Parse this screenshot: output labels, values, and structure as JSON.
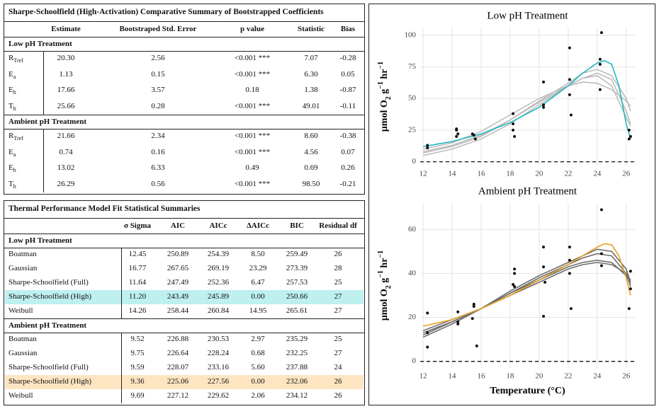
{
  "summary_table": {
    "title": "Sharpe-Schoolfield (High-Activation) Comparative Summary of Bootstrapped Coefficients",
    "headers": [
      "Estimate",
      "Bootstraped Std. Error",
      "p value",
      "Statistic",
      "Bias"
    ],
    "groups": [
      {
        "label": "Low pH Treatment",
        "rows": [
          {
            "param": "R",
            "sub": "Tref",
            "cells": [
              "20.30",
              "2.56",
              "<0.001 ***",
              "7.07",
              "-0.28"
            ]
          },
          {
            "param": "E",
            "sub": "a",
            "cells": [
              "1.13",
              "0.15",
              "<0.001 ***",
              "6.30",
              "0.05"
            ]
          },
          {
            "param": "E",
            "sub": "h",
            "cells": [
              "17.66",
              "3.57",
              "0.18",
              "1.38",
              "-0.87"
            ]
          },
          {
            "param": "T",
            "sub": "h",
            "cells": [
              "25.66",
              "0.28",
              "<0.001 ***",
              "49.01",
              "-0.11"
            ]
          }
        ]
      },
      {
        "label": "Ambient pH Treatment",
        "rows": [
          {
            "param": "R",
            "sub": "Tref",
            "cells": [
              "21.66",
              "2.34",
              "<0.001 ***",
              "8.60",
              "-0.38"
            ]
          },
          {
            "param": "E",
            "sub": "a",
            "cells": [
              "0.74",
              "0.16",
              "<0.001 ***",
              "4.56",
              "0.07"
            ]
          },
          {
            "param": "E",
            "sub": "h",
            "cells": [
              "13.02",
              "6.33",
              "0.49",
              "0.69",
              "0.26"
            ]
          },
          {
            "param": "T",
            "sub": "h",
            "cells": [
              "26.29",
              "0.56",
              "<0.001 ***",
              "98.50",
              "-0.21"
            ]
          }
        ]
      }
    ]
  },
  "fit_table": {
    "title": "Thermal Performance Model Fit Statistical Summaries",
    "headers": [
      "σ Sigma",
      "AIC",
      "AICc",
      "ΔAICc",
      "BIC",
      "Residual df"
    ],
    "groups": [
      {
        "label": "Low pH Treatment",
        "rows": [
          {
            "model": "Boatman",
            "cells": [
              "12.45",
              "250.89",
              "254.39",
              "8.50",
              "259.49",
              "26"
            ]
          },
          {
            "model": "Gaussian",
            "cells": [
              "16.77",
              "267.65",
              "269.19",
              "23.29",
              "273.39",
              "28"
            ]
          },
          {
            "model": "Sharpe-Schoolfield (Full)",
            "cells": [
              "11.64",
              "247.49",
              "252.36",
              "6.47",
              "257.53",
              "25"
            ]
          },
          {
            "model": "Sharpe-Schoolfield (High)",
            "cells": [
              "11.20",
              "243.49",
              "245.89",
              "0.00",
              "250.66",
              "27"
            ],
            "highlight": "#bdf0ef"
          },
          {
            "model": "Weibull",
            "cells": [
              "14.26",
              "258.44",
              "260.84",
              "14.95",
              "265.61",
              "27"
            ]
          }
        ]
      },
      {
        "label": "Ambient pH Treatment",
        "rows": [
          {
            "model": "Boatman",
            "cells": [
              "9.52",
              "226.88",
              "230.53",
              "2.97",
              "235.29",
              "25"
            ]
          },
          {
            "model": "Gaussian",
            "cells": [
              "9.75",
              "226.64",
              "228.24",
              "0.68",
              "232.25",
              "27"
            ]
          },
          {
            "model": "Sharpe-Schoolfield (Full)",
            "cells": [
              "9.59",
              "228.07",
              "233.16",
              "5.60",
              "237.88",
              "24"
            ]
          },
          {
            "model": "Sharpe-Schoolfield (High)",
            "cells": [
              "9.36",
              "225.06",
              "227.56",
              "0.00",
              "232.06",
              "26"
            ],
            "highlight": "#fde5c2"
          },
          {
            "model": "Weibull",
            "cells": [
              "9.69",
              "227.12",
              "229.62",
              "2.06",
              "234.12",
              "26"
            ]
          }
        ]
      }
    ]
  },
  "chart_data": [
    {
      "type": "line",
      "title": "Low pH Treatment",
      "ylabel": [
        {
          "text": "μmol O"
        },
        {
          "text": "2",
          "script": "sub"
        },
        {
          "text": " g"
        },
        {
          "text": "−1",
          "script": "super"
        },
        {
          "text": " hr"
        },
        {
          "text": "−1",
          "script": "super"
        }
      ],
      "xlim": [
        11.8,
        26.6
      ],
      "ylim": [
        -3,
        106
      ],
      "xticks": [
        12,
        14,
        16,
        18,
        20,
        22,
        24,
        26
      ],
      "yticks": [
        0,
        25,
        50,
        75,
        100
      ],
      "grid": true,
      "reference_line": 0,
      "series": [
        {
          "type": "line",
          "color": "#bdbdbd",
          "x": [
            12,
            14,
            16,
            18,
            20,
            22,
            23,
            24,
            25,
            26,
            26.3
          ],
          "values": [
            5,
            10,
            18,
            30,
            45,
            60,
            66,
            70,
            65,
            40,
            30
          ]
        },
        {
          "type": "line",
          "color": "#bdbdbd",
          "x": [
            12,
            14,
            16,
            18,
            20,
            22,
            23,
            24,
            25,
            26,
            26.3
          ],
          "values": [
            8,
            13,
            21,
            33,
            48,
            62,
            70,
            73,
            68,
            50,
            40
          ]
        },
        {
          "type": "line",
          "color": "#bdbdbd",
          "x": [
            12,
            14,
            16,
            18,
            20,
            22,
            23,
            24,
            25,
            26,
            26.3
          ],
          "values": [
            10,
            15,
            24,
            37,
            50,
            60,
            63,
            62,
            57,
            48,
            44
          ]
        },
        {
          "type": "line",
          "color": "#bdbdbd",
          "x": [
            12,
            14,
            16,
            18,
            20,
            22,
            23,
            24,
            25,
            26,
            26.3
          ],
          "values": [
            7,
            12,
            20,
            33,
            47,
            60,
            66,
            68,
            60,
            35,
            28
          ]
        },
        {
          "type": "line",
          "color": "#1fb8c0",
          "x": [
            12,
            14,
            16,
            18,
            20,
            22,
            23,
            24,
            24.5,
            25,
            25.5,
            26,
            26.3
          ],
          "values": [
            12,
            16,
            22,
            31,
            43,
            60,
            70,
            78,
            80,
            77,
            60,
            30,
            18
          ]
        },
        {
          "type": "scatter",
          "color": "#111111",
          "x": [
            12.3,
            12.3,
            14.3,
            14.3,
            14.4,
            14.3,
            15.4,
            15.5,
            15.6,
            18.2,
            18.2,
            18.2,
            18.3,
            20.3,
            20.3,
            20.3,
            22.1,
            22.1,
            22.1,
            22.2,
            24.3,
            24.2,
            24.2,
            24.2,
            26.2,
            26.3,
            26.2
          ],
          "values": [
            11,
            13,
            26,
            25,
            22,
            20,
            22,
            21,
            18,
            38,
            30,
            25,
            20,
            63,
            45,
            43,
            90,
            65,
            53,
            37,
            102,
            81,
            77,
            57,
            25,
            20,
            18
          ]
        }
      ]
    },
    {
      "type": "line",
      "title": "Ambient pH Treatment",
      "xlabel": "Temperature (°C)",
      "ylabel": [
        {
          "text": "μmol O"
        },
        {
          "text": "2",
          "script": "sub"
        },
        {
          "text": " g"
        },
        {
          "text": "−1",
          "script": "super"
        },
        {
          "text": " hr"
        },
        {
          "text": "−1",
          "script": "super"
        }
      ],
      "xlim": [
        11.8,
        26.6
      ],
      "ylim": [
        -3,
        72
      ],
      "xticks": [
        12,
        14,
        16,
        18,
        20,
        22,
        24,
        26
      ],
      "yticks": [
        0,
        20,
        40,
        60
      ],
      "grid": true,
      "reference_line": 0,
      "series": [
        {
          "type": "line",
          "color": "#6e6e6e",
          "x": [
            12,
            14,
            16,
            18,
            20,
            22,
            23,
            24,
            25,
            26,
            26.3
          ],
          "values": [
            12,
            18,
            24,
            31,
            38,
            44,
            47,
            49,
            48,
            40,
            34
          ]
        },
        {
          "type": "line",
          "color": "#6e6e6e",
          "x": [
            12,
            14,
            16,
            18,
            20,
            22,
            23,
            24,
            25,
            26,
            26.3
          ],
          "values": [
            13,
            18,
            24,
            31,
            37,
            43,
            45,
            46,
            45,
            39,
            35
          ]
        },
        {
          "type": "line",
          "color": "#6e6e6e",
          "x": [
            12,
            14,
            16,
            18,
            20,
            22,
            23,
            24,
            25,
            26,
            26.3
          ],
          "values": [
            11,
            17,
            24,
            32,
            39,
            45,
            48,
            51,
            50,
            42,
            36
          ]
        },
        {
          "type": "line",
          "color": "#6e6e6e",
          "x": [
            12,
            14,
            16,
            18,
            20,
            22,
            23,
            24,
            25,
            26,
            26.3
          ],
          "values": [
            14,
            19,
            24,
            30,
            36,
            42,
            44,
            45,
            44,
            40,
            37
          ]
        },
        {
          "type": "line",
          "color": "#e8a020",
          "x": [
            12,
            14,
            16,
            18,
            20,
            22,
            23,
            24,
            24.5,
            25,
            25.5,
            26,
            26.3
          ],
          "values": [
            16,
            19,
            24,
            30,
            37,
            44,
            48,
            52,
            53.5,
            53,
            48,
            38,
            30
          ]
        },
        {
          "type": "scatter",
          "color": "#111111",
          "x": [
            12.3,
            12.3,
            12.3,
            14.4,
            14.4,
            14.4,
            15.5,
            15.5,
            15.4,
            15.7,
            18.3,
            18.3,
            18.2,
            18.3,
            20.3,
            20.3,
            20.4,
            20.3,
            22.1,
            22.1,
            22.1,
            22.2,
            24.3,
            24.3,
            24.3,
            26.3,
            26.3,
            26.2
          ],
          "values": [
            22,
            6.5,
            13,
            22.5,
            18,
            17,
            26,
            25,
            19.5,
            7,
            42,
            40,
            35,
            34,
            52,
            43,
            36,
            20.5,
            52,
            46,
            40,
            24,
            69,
            49,
            43.5,
            41,
            33,
            24
          ]
        }
      ]
    }
  ]
}
